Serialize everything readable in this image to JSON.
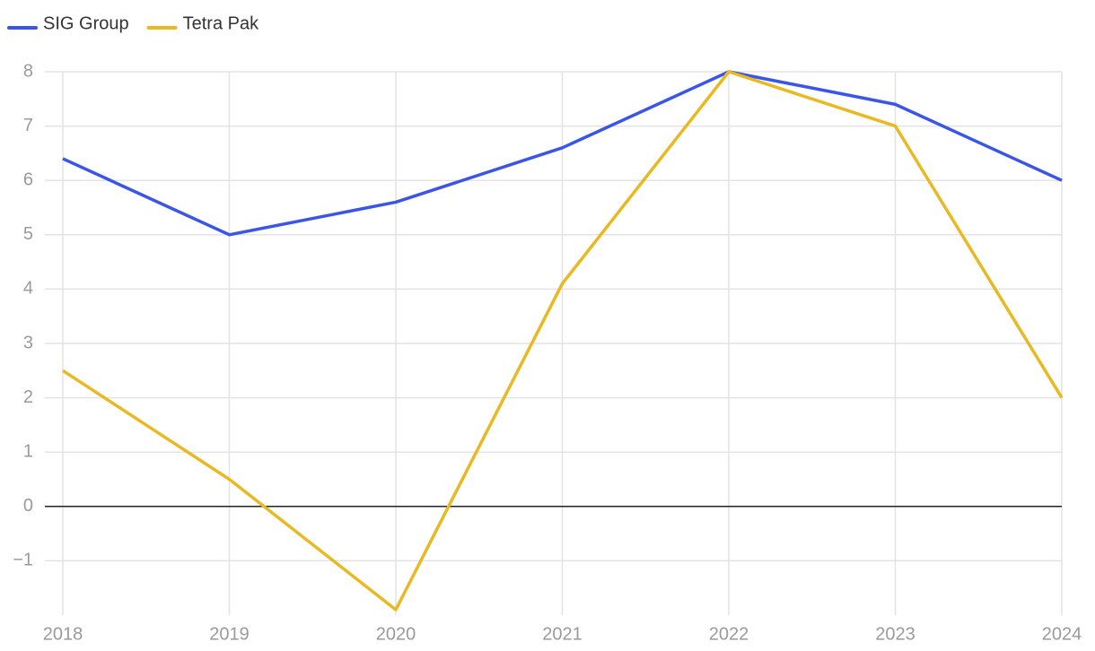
{
  "chart_data": {
    "type": "line",
    "categories": [
      "2018",
      "2019",
      "2020",
      "2021",
      "2022",
      "2023",
      "2024"
    ],
    "series": [
      {
        "name": "SIG Group",
        "color": "#3b55e6",
        "values": [
          6.4,
          5.0,
          5.6,
          6.6,
          8.0,
          7.4,
          6.0
        ]
      },
      {
        "name": "Tetra Pak",
        "color": "#e8b923",
        "values": [
          2.5,
          0.5,
          -1.9,
          4.1,
          8.0,
          7.0,
          2.0
        ]
      }
    ],
    "ylim": [
      -2,
      8
    ],
    "yticks": [
      {
        "value": -1,
        "label": "−1"
      },
      0,
      1,
      2,
      3,
      4,
      5,
      6,
      7,
      8
    ],
    "grid": true,
    "zero_line": true,
    "legend": "top-left"
  }
}
